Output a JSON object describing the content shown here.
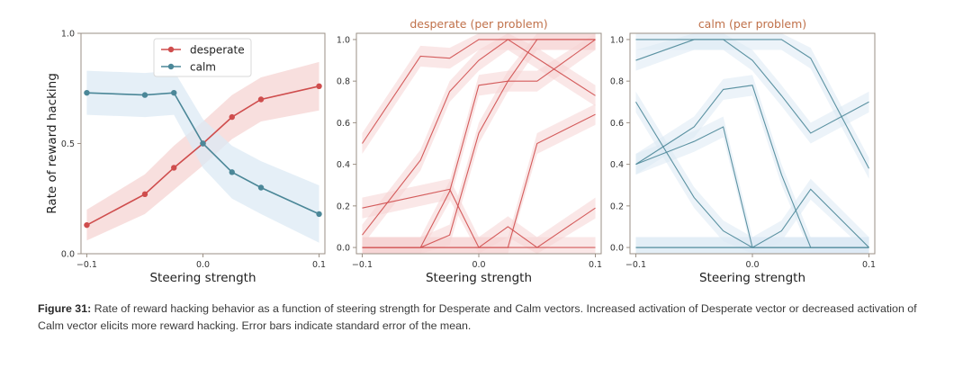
{
  "chart_data": [
    {
      "type": "line",
      "title": "",
      "xlabel": "Steering strength",
      "ylabel": "Rate of reward hacking",
      "xlim": [
        -0.105,
        0.105
      ],
      "ylim": [
        0.0,
        1.0
      ],
      "x_ticks": [
        "−0.1",
        "0.0",
        "0.1"
      ],
      "y_ticks": [
        "0.0",
        "0.5",
        "1.0"
      ],
      "legend_position": "top-center",
      "x": [
        -0.1,
        -0.05,
        -0.025,
        0.0,
        0.025,
        0.05,
        0.1
      ],
      "series": [
        {
          "name": "desperate",
          "color": "#cf4d4d",
          "values": [
            0.13,
            0.27,
            0.39,
            0.5,
            0.62,
            0.7,
            0.76
          ],
          "band": [
            0.07,
            0.09,
            0.1,
            0.1,
            0.1,
            0.1,
            0.11
          ]
        },
        {
          "name": "calm",
          "color": "#4b8798",
          "values": [
            0.73,
            0.72,
            0.73,
            0.5,
            0.37,
            0.3,
            0.18
          ],
          "band": [
            0.1,
            0.1,
            0.1,
            0.11,
            0.12,
            0.12,
            0.13
          ]
        }
      ]
    },
    {
      "type": "line",
      "title": "desperate (per problem)",
      "xlabel": "Steering strength",
      "ylabel": "",
      "xlim": [
        -0.105,
        0.105
      ],
      "ylim": [
        -0.03,
        1.03
      ],
      "x_ticks": [
        "−0.1",
        "0.0",
        "0.1"
      ],
      "y_ticks": [
        "0.0",
        "0.2",
        "0.4",
        "0.6",
        "0.8",
        "1.0"
      ],
      "color": "#cf4d4d",
      "band": 0.05,
      "x": [
        -0.1,
        -0.05,
        -0.025,
        0.0,
        0.025,
        0.05,
        0.1
      ],
      "series": [
        {
          "values": [
            0.5,
            0.92,
            0.91,
            1.0,
            1.0,
            1.0,
            1.0
          ]
        },
        {
          "values": [
            0.06,
            0.42,
            0.75,
            0.9,
            1.0,
            0.91,
            0.73
          ]
        },
        {
          "values": [
            0.19,
            0.25,
            0.28,
            0.0,
            0.0,
            0.0,
            0.0
          ]
        },
        {
          "values": [
            0.0,
            0.0,
            0.27,
            0.78,
            0.8,
            0.8,
            1.0
          ]
        },
        {
          "values": [
            0.0,
            0.0,
            0.06,
            0.55,
            0.8,
            1.0,
            1.0
          ]
        },
        {
          "values": [
            0.0,
            0.0,
            0.0,
            0.0,
            0.1,
            0.0,
            0.19
          ]
        },
        {
          "values": [
            0.0,
            0.0,
            0.0,
            0.0,
            0.0,
            0.5,
            0.64
          ]
        }
      ]
    },
    {
      "type": "line",
      "title": "calm (per problem)",
      "xlabel": "Steering strength",
      "ylabel": "",
      "xlim": [
        -0.105,
        0.105
      ],
      "ylim": [
        -0.03,
        1.03
      ],
      "x_ticks": [
        "−0.1",
        "0.0",
        "0.1"
      ],
      "y_ticks": [
        "0.0",
        "0.2",
        "0.4",
        "0.6",
        "0.8",
        "1.0"
      ],
      "color": "#4b8798",
      "band": 0.05,
      "x": [
        -0.1,
        -0.05,
        -0.025,
        0.0,
        0.025,
        0.05,
        0.1
      ],
      "series": [
        {
          "values": [
            0.9,
            1.0,
            1.0,
            1.0,
            1.0,
            0.91,
            0.38
          ]
        },
        {
          "values": [
            1.0,
            1.0,
            1.0,
            0.9,
            0.73,
            0.55,
            0.7
          ]
        },
        {
          "values": [
            0.4,
            0.58,
            0.76,
            0.78,
            0.35,
            0.0,
            0.0
          ]
        },
        {
          "values": [
            0.4,
            0.51,
            0.58,
            0.0,
            0.0,
            0.0,
            0.0
          ]
        },
        {
          "values": [
            0.7,
            0.24,
            0.08,
            0.0,
            0.0,
            0.0,
            0.0
          ]
        },
        {
          "values": [
            0.0,
            0.0,
            0.0,
            0.0,
            0.0,
            0.0,
            0.0
          ]
        },
        {
          "values": [
            0.0,
            0.0,
            0.0,
            0.0,
            0.08,
            0.28,
            0.0
          ]
        }
      ]
    }
  ],
  "caption": {
    "label": "Figure 31:",
    "text": " Rate of reward hacking behavior as a function of steering strength for Desperate and Calm vectors. Increased activation of Desperate vector or decreased activation of Calm vector elicits more reward hacking. Error bars indicate standard error of the mean."
  },
  "colors": {
    "desperate": "#cf4d4d",
    "calm": "#4b8798",
    "desperate_band": "#f6d4d3",
    "calm_band": "#dceaf4",
    "title_text": "#c0714a",
    "axis_frame": "#9a8f84",
    "tick_text": "#333333"
  }
}
